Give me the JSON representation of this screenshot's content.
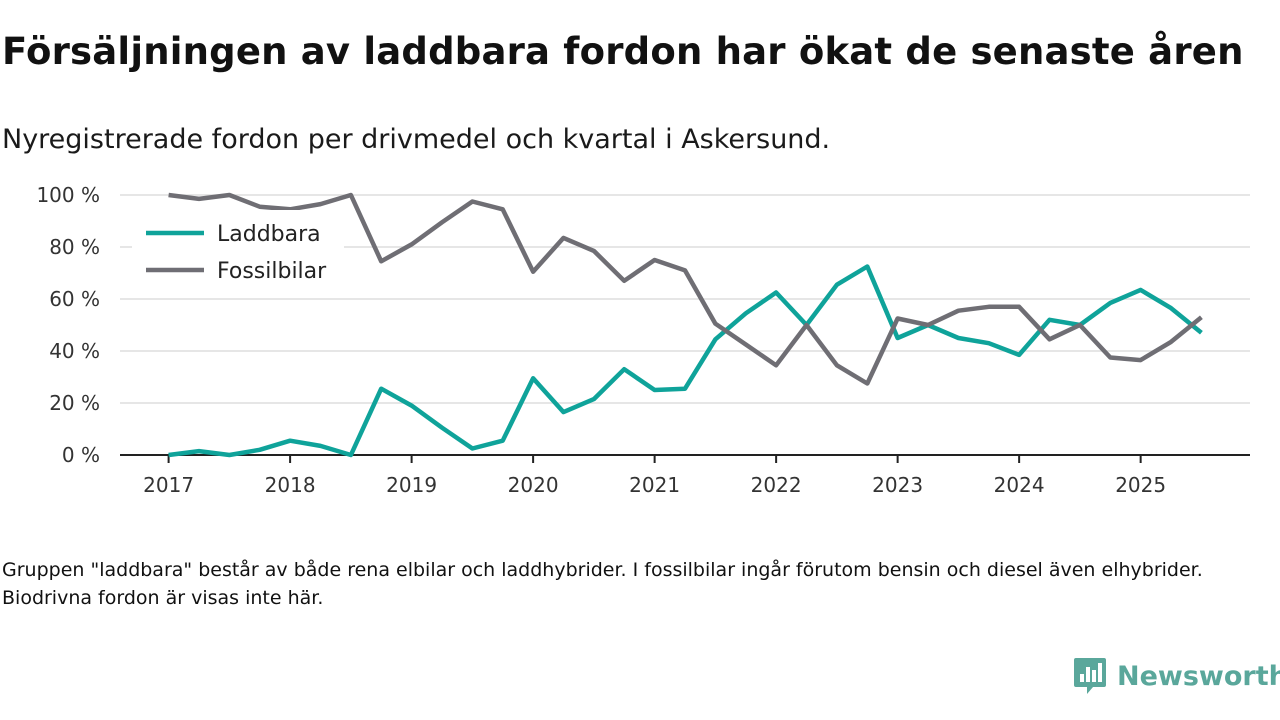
{
  "title": "Försäljningen av laddbara fordon har ökat de senaste åren",
  "subtitle": "Nyregistrerade fordon per drivmedel och kvartal i Askersund.",
  "footnote": "Gruppen \"laddbara\" består av både rena elbilar och laddhybrider. I fossilbilar ingår förutom bensin och diesel även elhybrider. Biodrivna fordon är visas inte här.",
  "brand": {
    "name": "Newsworthy",
    "icon": "newsworthy-logo-icon",
    "color": "#5aa79b"
  },
  "chart_data": {
    "type": "line",
    "title": "Försäljningen av laddbara fordon har ökat de senaste åren",
    "xlabel": "",
    "ylabel": "",
    "ylim": [
      0,
      100
    ],
    "xlim": [
      2017,
      2025.75
    ],
    "yticks": [
      0,
      20,
      40,
      60,
      80,
      100
    ],
    "ytick_labels": [
      "0 %",
      "20 %",
      "40 %",
      "60 %",
      "80 %",
      "100 %"
    ],
    "xticks": [
      2017,
      2018,
      2019,
      2020,
      2021,
      2022,
      2023,
      2024,
      2025
    ],
    "xtick_labels": [
      "2017",
      "2018",
      "2019",
      "2020",
      "2021",
      "2022",
      "2023",
      "2024",
      "2025"
    ],
    "legend_position": "top-left",
    "grid": true,
    "x": [
      2017.0,
      2017.25,
      2017.5,
      2017.75,
      2018.0,
      2018.25,
      2018.5,
      2018.75,
      2019.0,
      2019.25,
      2019.5,
      2019.75,
      2020.0,
      2020.25,
      2020.5,
      2020.75,
      2021.0,
      2021.25,
      2021.5,
      2021.75,
      2022.0,
      2022.25,
      2022.5,
      2022.75,
      2023.0,
      2023.25,
      2023.5,
      2023.75,
      2024.0,
      2024.25,
      2024.5,
      2024.75,
      2025.0,
      2025.25,
      2025.5
    ],
    "series": [
      {
        "name": "Laddbara",
        "color": "#0fa39a",
        "values": [
          0,
          1.5,
          0,
          2,
          5.5,
          3.5,
          0,
          25.5,
          19,
          10.5,
          2.5,
          5.5,
          29.5,
          16.5,
          21.5,
          33,
          25,
          25.5,
          44.5,
          54.5,
          62.5,
          50,
          65.5,
          72.5,
          45,
          50,
          45,
          43,
          38.5,
          52,
          50,
          58.5,
          63.5,
          56.5,
          47
        ]
      },
      {
        "name": "Fossilbilar",
        "color": "#6f6e74",
        "values": [
          100,
          98.5,
          100,
          95.5,
          94.5,
          96.5,
          100,
          74.5,
          81,
          89.5,
          97.5,
          94.5,
          70.5,
          83.5,
          78.5,
          67,
          75,
          71,
          50.5,
          42.5,
          34.5,
          50,
          34.5,
          27.5,
          52.5,
          50,
          55.5,
          57,
          57,
          44.5,
          50,
          37.5,
          36.5,
          43.5,
          53
        ]
      }
    ]
  }
}
